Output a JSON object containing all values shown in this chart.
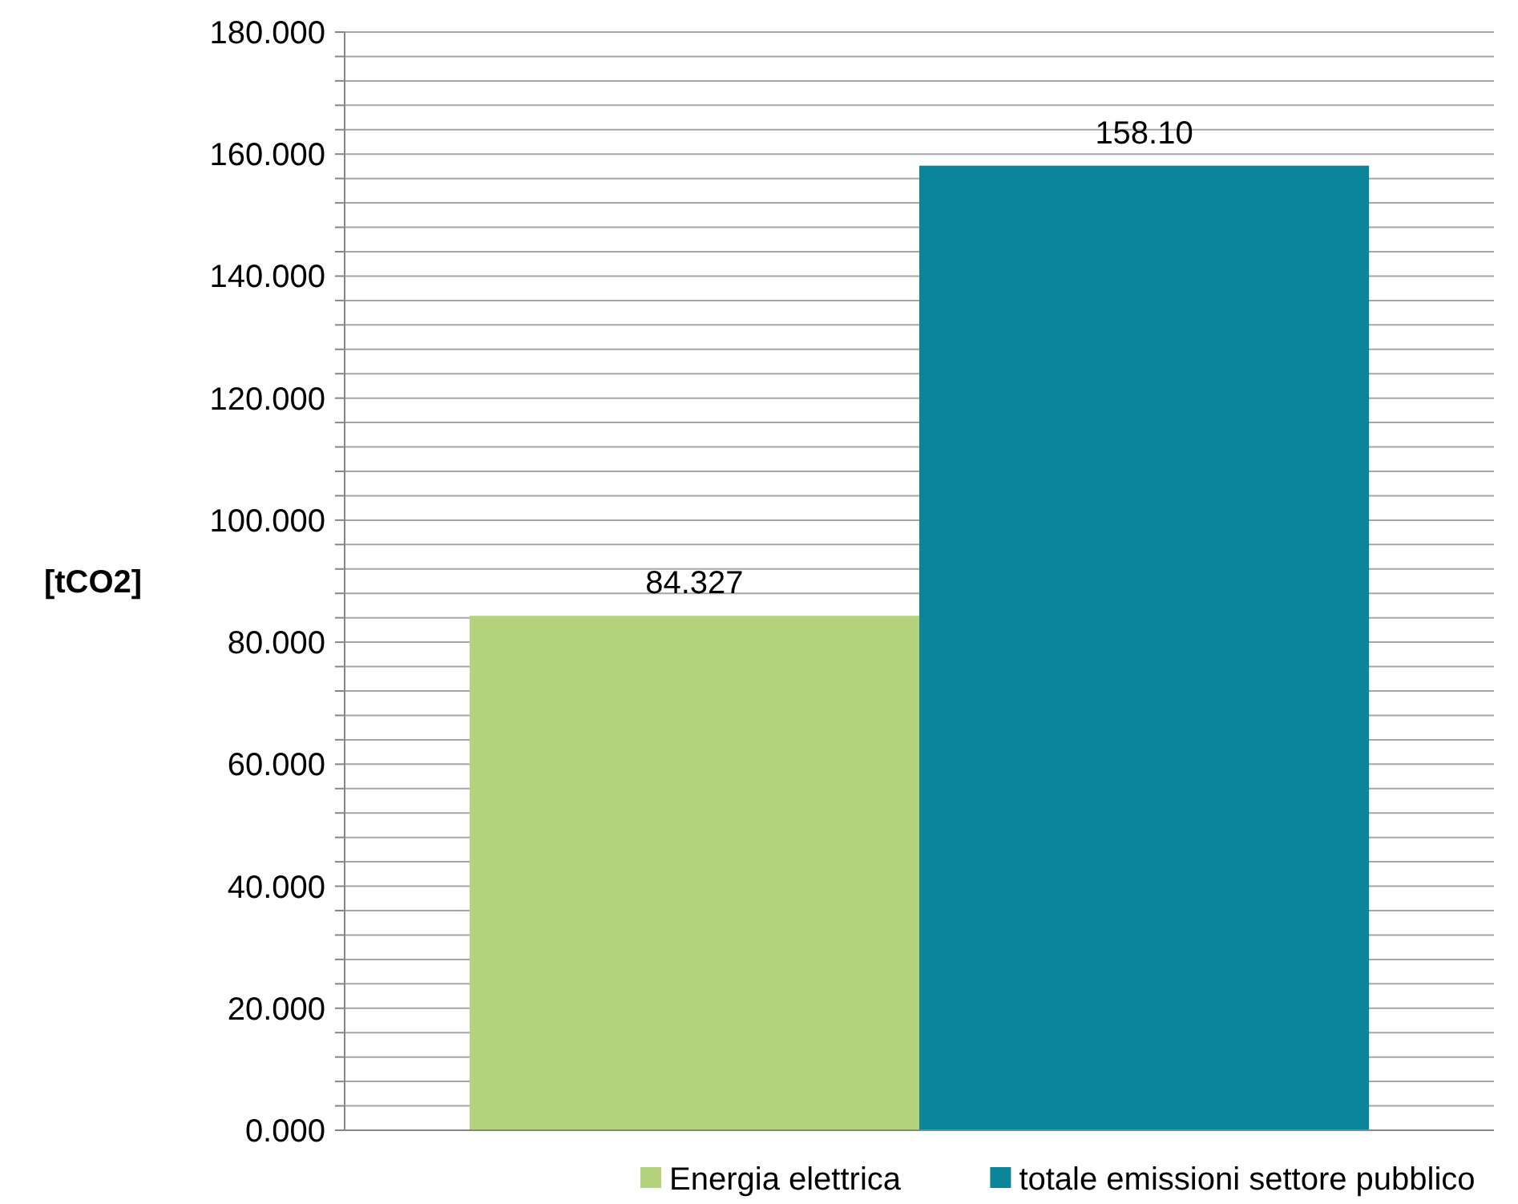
{
  "chart_data": {
    "type": "bar",
    "ylabel": "[tCO2]",
    "categories": [
      null
    ],
    "series": [
      {
        "name": "Energia elettrica",
        "color": "#b5d37c",
        "values": [
          84.327
        ],
        "value_labels": [
          "84.327"
        ]
      },
      {
        "name": "totale emissioni settore pubblico",
        "color": "#0b8599",
        "values": [
          158.1
        ],
        "value_labels": [
          "158.10"
        ]
      }
    ],
    "ylim": [
      0,
      180
    ],
    "yticks": [
      {
        "value": 0,
        "label": "0.000"
      },
      {
        "value": 4,
        "label": null
      },
      {
        "value": 8,
        "label": null
      },
      {
        "value": 12,
        "label": null
      },
      {
        "value": 16,
        "label": null
      },
      {
        "value": 20,
        "label": "20.000"
      },
      {
        "value": 24,
        "label": null
      },
      {
        "value": 28,
        "label": null
      },
      {
        "value": 32,
        "label": null
      },
      {
        "value": 36,
        "label": null
      },
      {
        "value": 40,
        "label": "40.000"
      },
      {
        "value": 44,
        "label": null
      },
      {
        "value": 48,
        "label": null
      },
      {
        "value": 52,
        "label": null
      },
      {
        "value": 56,
        "label": null
      },
      {
        "value": 60,
        "label": "60.000"
      },
      {
        "value": 64,
        "label": null
      },
      {
        "value": 68,
        "label": null
      },
      {
        "value": 72,
        "label": null
      },
      {
        "value": 76,
        "label": null
      },
      {
        "value": 80,
        "label": "80.000"
      },
      {
        "value": 84,
        "label": null
      },
      {
        "value": 88,
        "label": null
      },
      {
        "value": 92,
        "label": null
      },
      {
        "value": 96,
        "label": null
      },
      {
        "value": 100,
        "label": "100.000"
      },
      {
        "value": 104,
        "label": null
      },
      {
        "value": 108,
        "label": null
      },
      {
        "value": 112,
        "label": null
      },
      {
        "value": 116,
        "label": null
      },
      {
        "value": 120,
        "label": "120.000"
      },
      {
        "value": 124,
        "label": null
      },
      {
        "value": 128,
        "label": null
      },
      {
        "value": 132,
        "label": null
      },
      {
        "value": 136,
        "label": null
      },
      {
        "value": 140,
        "label": "140.000"
      },
      {
        "value": 144,
        "label": null
      },
      {
        "value": 148,
        "label": null
      },
      {
        "value": 152,
        "label": null
      },
      {
        "value": 156,
        "label": null
      },
      {
        "value": 160,
        "label": "160.000"
      },
      {
        "value": 164,
        "label": null
      },
      {
        "value": 168,
        "label": null
      },
      {
        "value": 172,
        "label": null
      },
      {
        "value": 176,
        "label": null
      },
      {
        "value": 180,
        "label": "180.000"
      }
    ],
    "grid": "y",
    "legend": "bottom"
  }
}
